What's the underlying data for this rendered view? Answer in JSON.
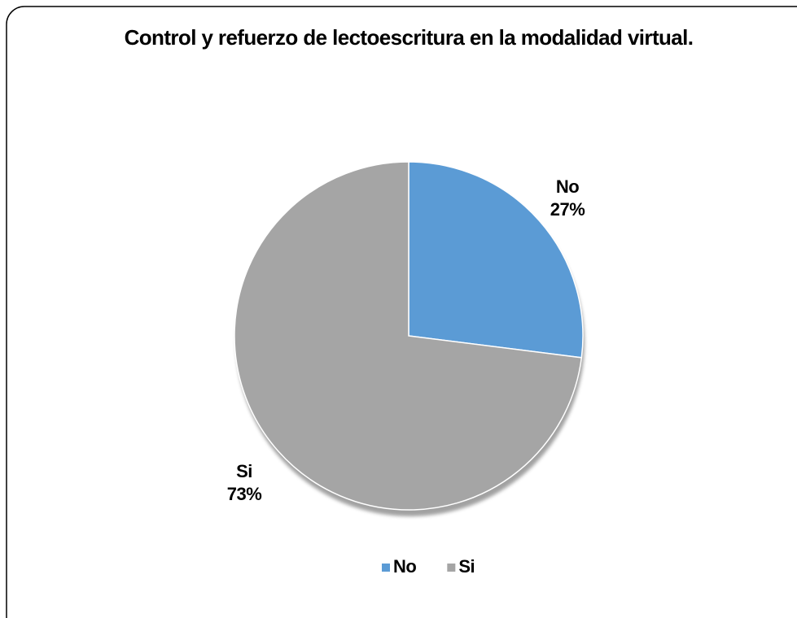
{
  "chart_data": {
    "type": "pie",
    "title": "Control y refuerzo de lectoescritura en la modalidad virtual.",
    "categories": [
      "No",
      "Si"
    ],
    "values": [
      27,
      73
    ],
    "value_labels": [
      "27%",
      "73%"
    ],
    "colors": [
      "#5b9bd5",
      "#a5a5a5"
    ],
    "legend": "bottom"
  }
}
